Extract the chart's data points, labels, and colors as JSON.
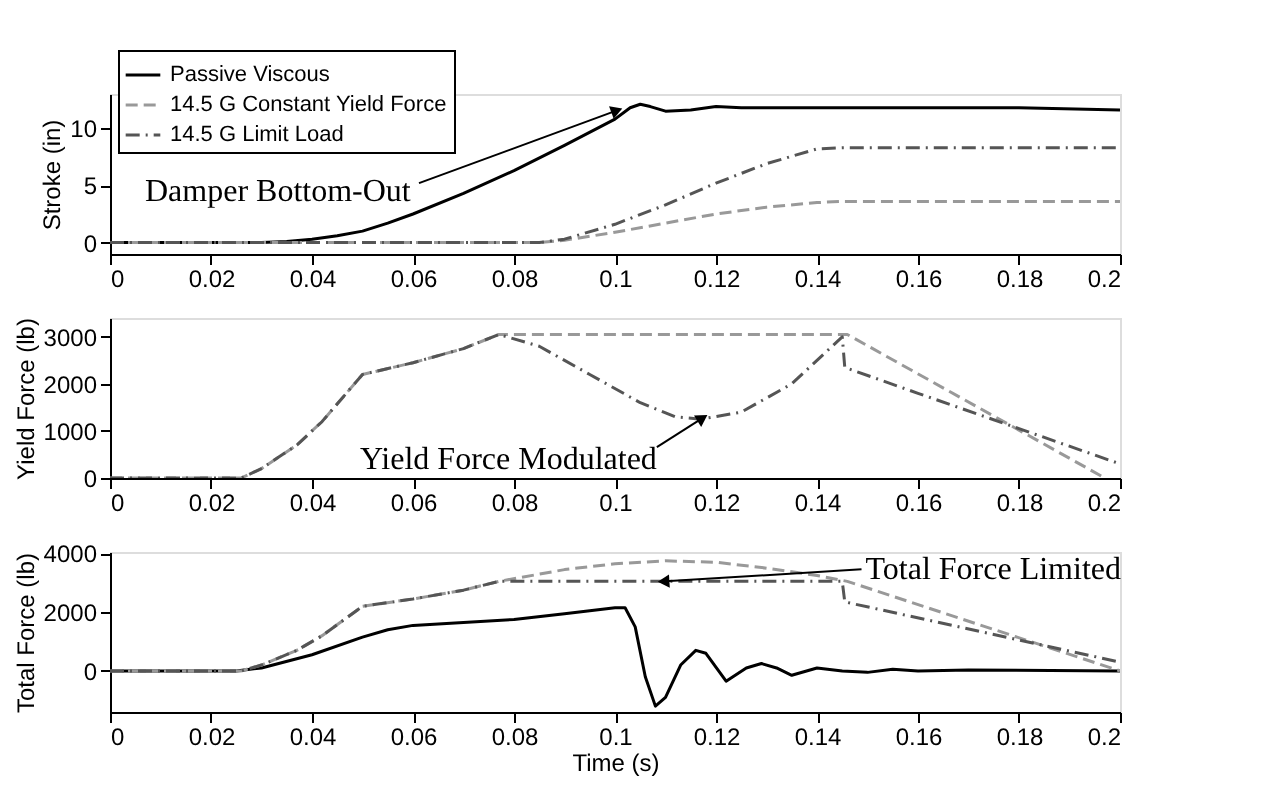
{
  "chart_data": [
    {
      "type": "line",
      "ylabel": "Stroke (in)",
      "xlim": [
        0,
        0.2
      ],
      "xticks": [
        0,
        0.02,
        0.04,
        0.06,
        0.08,
        0.1,
        0.12,
        0.14,
        0.16,
        0.18,
        0.2
      ],
      "ylim": [
        -1,
        13
      ],
      "yticks": [
        0,
        5,
        10
      ],
      "grid": false,
      "legend": "top left",
      "annotations": [
        {
          "text": "Damper Bottom-Out",
          "x": 0.1,
          "y": 11.5
        }
      ],
      "series": [
        {
          "name": "Passive Viscous",
          "color": "#000000",
          "line_style": "solid",
          "x": [
            0,
            0.03,
            0.035,
            0.04,
            0.045,
            0.05,
            0.055,
            0.06,
            0.07,
            0.08,
            0.09,
            0.1,
            0.103,
            0.105,
            0.107,
            0.11,
            0.115,
            0.12,
            0.125,
            0.13,
            0.14,
            0.16,
            0.18,
            0.2
          ],
          "values": [
            0,
            0,
            0.1,
            0.3,
            0.6,
            1.0,
            1.7,
            2.5,
            4.3,
            6.3,
            8.5,
            10.8,
            11.8,
            12.1,
            11.9,
            11.5,
            11.6,
            11.9,
            11.8,
            11.8,
            11.8,
            11.8,
            11.8,
            11.6
          ]
        },
        {
          "name": "14.5 G Constant Yield Force",
          "color": "#999999",
          "line_style": "dashed",
          "x": [
            0,
            0.085,
            0.09,
            0.1,
            0.11,
            0.12,
            0.13,
            0.14,
            0.145,
            0.2
          ],
          "values": [
            0,
            0,
            0.2,
            0.9,
            1.7,
            2.5,
            3.1,
            3.5,
            3.6,
            3.6
          ]
        },
        {
          "name": "14.5 G Limit Load",
          "color": "#555555",
          "line_style": "dashdot",
          "x": [
            0,
            0.085,
            0.09,
            0.1,
            0.11,
            0.12,
            0.13,
            0.14,
            0.145,
            0.2
          ],
          "values": [
            0,
            0,
            0.3,
            1.6,
            3.3,
            5.2,
            6.9,
            8.2,
            8.3,
            8.3
          ]
        }
      ]
    },
    {
      "type": "line",
      "ylabel": "Yield Force (lb)",
      "xlim": [
        0,
        0.2
      ],
      "xticks": [
        0,
        0.02,
        0.04,
        0.06,
        0.08,
        0.1,
        0.12,
        0.14,
        0.16,
        0.18,
        0.2
      ],
      "ylim": [
        0,
        3400
      ],
      "yticks": [
        0,
        1000,
        2000,
        3000
      ],
      "grid": false,
      "annotations": [
        {
          "text": "Yield Force Modulated",
          "x": 0.117,
          "y": 1250
        }
      ],
      "series": [
        {
          "color": "#999999",
          "line_style": "dashed",
          "x": [
            0,
            0.026,
            0.03,
            0.037,
            0.042,
            0.05,
            0.06,
            0.07,
            0.077,
            0.146,
            0.197
          ],
          "values": [
            0,
            0,
            200,
            700,
            1200,
            2200,
            2450,
            2750,
            3050,
            3050,
            0
          ]
        },
        {
          "color": "#555555",
          "line_style": "dashdot",
          "x": [
            0,
            0.026,
            0.03,
            0.037,
            0.042,
            0.05,
            0.06,
            0.07,
            0.077,
            0.085,
            0.095,
            0.105,
            0.112,
            0.117,
            0.125,
            0.135,
            0.145,
            0.1455,
            0.16,
            0.18,
            0.2
          ],
          "values": [
            0,
            0,
            200,
            700,
            1200,
            2200,
            2450,
            2750,
            3050,
            2800,
            2200,
            1600,
            1300,
            1250,
            1400,
            2000,
            3000,
            2350,
            1800,
            1050,
            300
          ]
        }
      ]
    },
    {
      "type": "line",
      "xlabel": "Time (s)",
      "ylabel": "Total Force (lb)",
      "xlim": [
        0,
        0.2
      ],
      "xticks": [
        0,
        0.02,
        0.04,
        0.06,
        0.08,
        0.1,
        0.12,
        0.14,
        0.16,
        0.18,
        0.2
      ],
      "ylim": [
        -1400,
        4050
      ],
      "yticks": [
        0,
        2000,
        4000
      ],
      "grid": false,
      "annotations": [
        {
          "text": "Total Force Limited",
          "x": 0.11,
          "y": 3050
        }
      ],
      "series": [
        {
          "color": "#000000",
          "line_style": "solid",
          "x": [
            0,
            0.025,
            0.03,
            0.04,
            0.05,
            0.055,
            0.06,
            0.07,
            0.08,
            0.09,
            0.1,
            0.102,
            0.104,
            0.106,
            0.108,
            0.11,
            0.113,
            0.116,
            0.118,
            0.122,
            0.126,
            0.129,
            0.132,
            0.135,
            0.14,
            0.145,
            0.15,
            0.155,
            0.16,
            0.17,
            0.2
          ],
          "values": [
            0,
            0,
            100,
            550,
            1150,
            1400,
            1550,
            1650,
            1750,
            1950,
            2150,
            2150,
            1500,
            -200,
            -1200,
            -900,
            200,
            700,
            600,
            -350,
            100,
            250,
            100,
            -150,
            100,
            0,
            -50,
            60,
            0,
            30,
            0
          ]
        },
        {
          "color": "#999999",
          "line_style": "dashed",
          "x": [
            0,
            0.026,
            0.03,
            0.037,
            0.042,
            0.05,
            0.06,
            0.07,
            0.077,
            0.09,
            0.1,
            0.11,
            0.12,
            0.13,
            0.14,
            0.146,
            0.2
          ],
          "values": [
            0,
            0,
            200,
            700,
            1200,
            2200,
            2450,
            2750,
            3050,
            3450,
            3650,
            3750,
            3700,
            3500,
            3250,
            3050,
            0
          ]
        },
        {
          "color": "#555555",
          "line_style": "dashdot",
          "x": [
            0,
            0.026,
            0.03,
            0.037,
            0.042,
            0.05,
            0.06,
            0.07,
            0.077,
            0.145,
            0.1455,
            0.2
          ],
          "values": [
            0,
            0,
            200,
            700,
            1200,
            2200,
            2450,
            2750,
            3050,
            3050,
            2350,
            300
          ]
        }
      ]
    }
  ]
}
